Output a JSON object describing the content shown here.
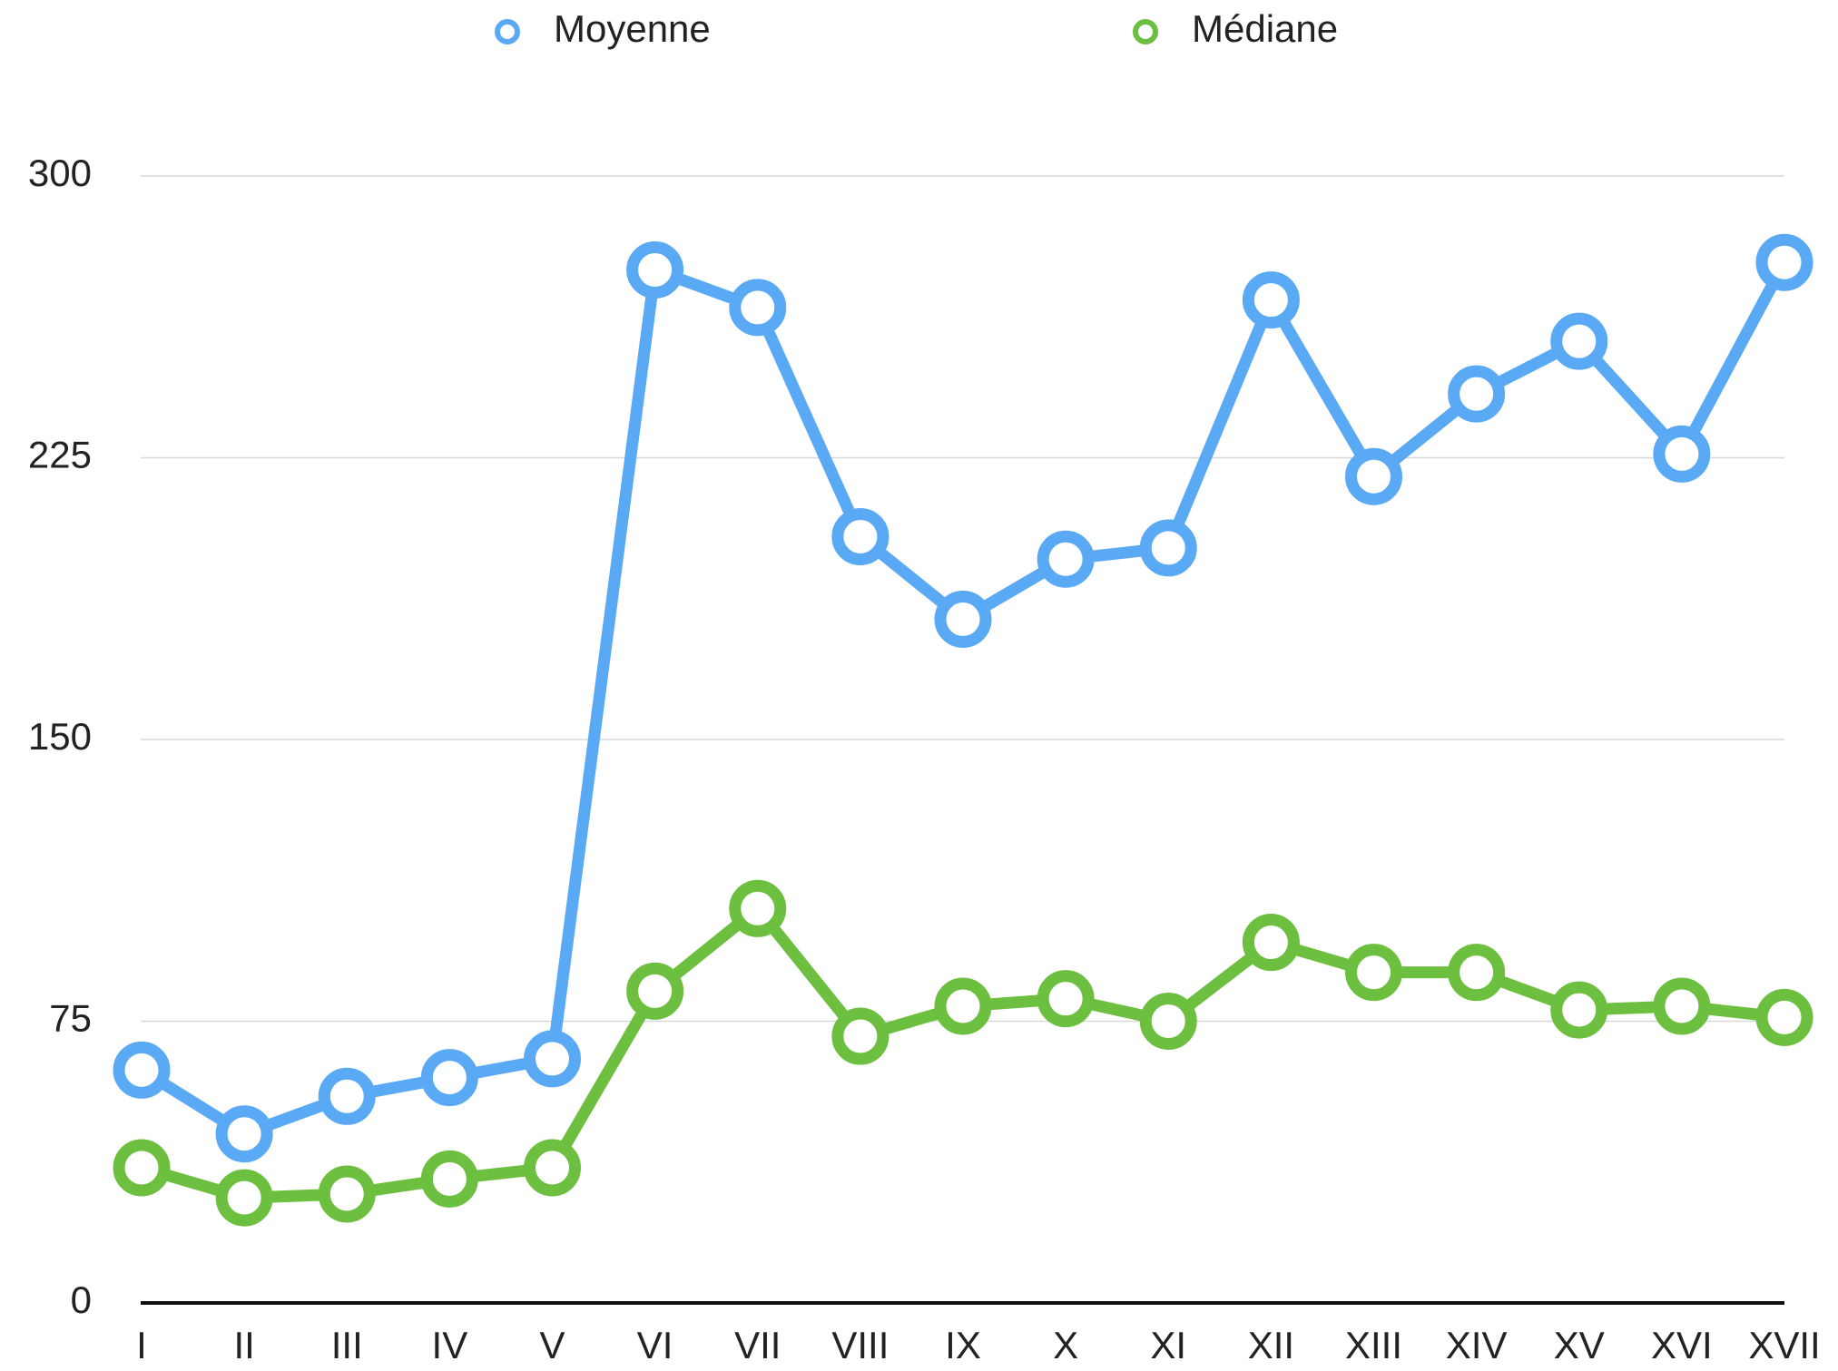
{
  "chart_data": {
    "type": "line",
    "categories": [
      "I",
      "II",
      "III",
      "IV",
      "V",
      "VI",
      "VII",
      "VIII",
      "IX",
      "X",
      "XI",
      "XII",
      "XIII",
      "XIV",
      "XV",
      "XVI",
      "XVII"
    ],
    "series": [
      {
        "name": "Moyenne",
        "color": "#5aa9f5",
        "values": [
          62,
          45,
          55,
          60,
          65,
          275,
          265,
          204,
          182,
          198,
          201,
          267,
          220,
          242,
          256,
          226,
          277
        ]
      },
      {
        "name": "Médiane",
        "color": "#6cbf3f",
        "values": [
          36,
          28,
          29,
          33,
          36,
          83,
          105,
          71,
          79,
          81,
          75,
          96,
          88,
          88,
          78,
          79,
          76
        ]
      }
    ],
    "ylim": [
      0,
      300
    ],
    "yticks": [
      0,
      75,
      150,
      225,
      300
    ],
    "grid": true,
    "legend": "top"
  }
}
